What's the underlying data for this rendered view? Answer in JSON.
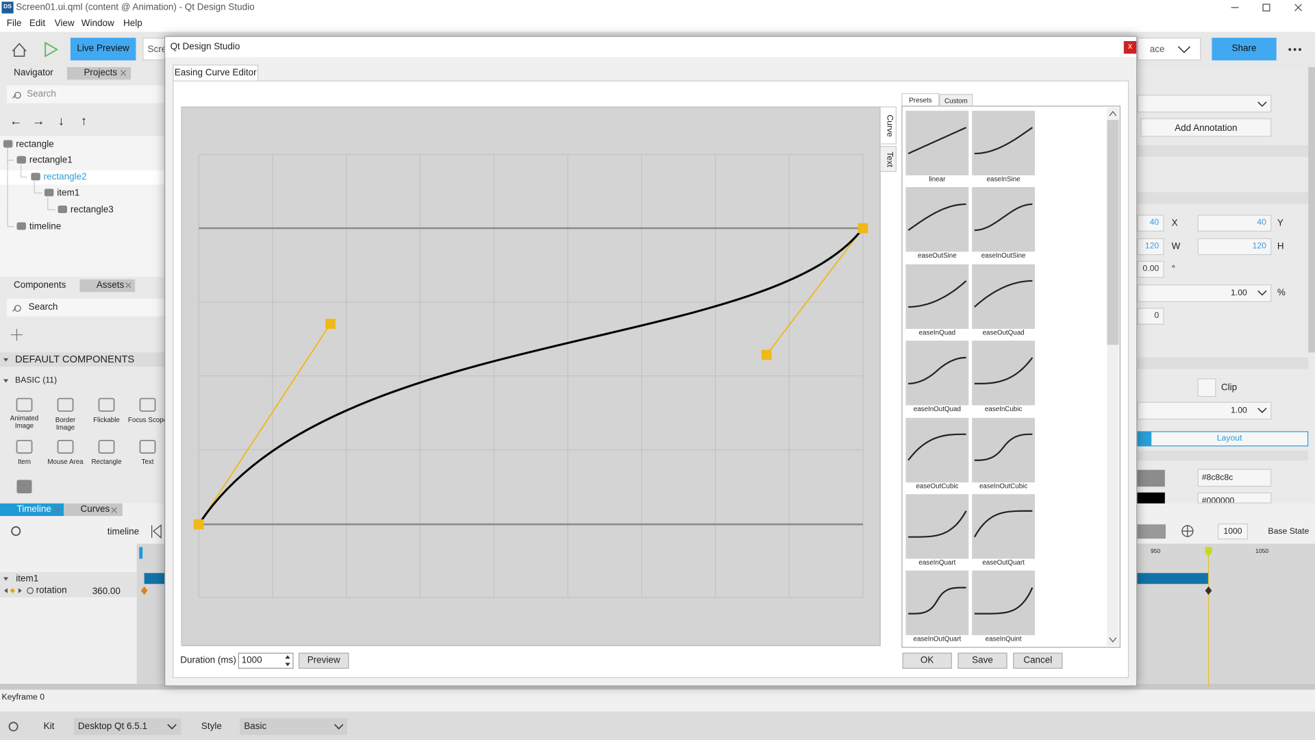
{
  "window": {
    "icon": "DS",
    "title": "Screen01.ui.qml (content @ Animation) - Qt Design Studio"
  },
  "menu": [
    "File",
    "Edit",
    "View",
    "Window",
    "Help"
  ],
  "toolbar": {
    "live_preview": "Live Preview",
    "screen": "Scree",
    "workspace": "ace",
    "share": "Share"
  },
  "navigator": {
    "tabs": [
      "Navigator",
      "Projects"
    ],
    "search": "Search",
    "arrows": [
      "←",
      "→",
      "↓",
      "↑"
    ],
    "tree": [
      "rectangle",
      "rectangle1",
      "rectangle2",
      "item1",
      "rectangle3",
      "timeline"
    ]
  },
  "components": {
    "tabs": [
      "Components",
      "Assets"
    ],
    "search": "Search",
    "section": "DEFAULT COMPONENTS",
    "group": "BASIC (11)",
    "items": [
      "Animated Image",
      "Border Image",
      "Flickable",
      "Focus Scope",
      "Item",
      "Mouse Area",
      "Rectangle",
      "Text"
    ]
  },
  "timeline": {
    "tabs": [
      "Timeline",
      "Curves"
    ],
    "name": "timeline",
    "item": "item1",
    "property": "rotation",
    "value": "360.00",
    "ruler": [
      "950",
      "1050"
    ],
    "end_frame": "1000",
    "state": "Base State",
    "keyframe": "Keyframe 0"
  },
  "properties": {
    "add_annotation": "Add Annotation",
    "x": "40",
    "x_label": "X",
    "y": "40",
    "y_label": "Y",
    "w": "120",
    "w_label": "W",
    "h": "120",
    "h_label": "H",
    "rotation": "0.00",
    "rotation_unit": "°",
    "opacity": "1.00",
    "opacity_unit": "%",
    "z": "0",
    "clip": "Clip",
    "scale": "1.00",
    "layout": "Layout",
    "color": "#8c8c8c",
    "border_color": "#000000"
  },
  "status": {
    "kit_label": "Kit",
    "kit": "Desktop Qt 6.5.1",
    "style_label": "Style",
    "style": "Basic"
  },
  "dialog": {
    "title": "Qt Design Studio",
    "close": "x",
    "tab": "Easing Curve Editor",
    "side_tabs": [
      "Curve",
      "Text"
    ],
    "preset_tabs": [
      "Presets",
      "Custom"
    ],
    "presets": [
      "linear",
      "easeInSine",
      "easeOutSine",
      "easeInOutSine",
      "easeInQuad",
      "easeOutQuad",
      "easeInOutQuad",
      "easeInCubic",
      "easeOutCubic",
      "easeInOutCubic",
      "easeInQuart",
      "easeOutQuart",
      "easeInOutQuart",
      "easeInQuint"
    ],
    "duration_label": "Duration (ms)",
    "duration": "1000",
    "preview": "Preview",
    "buttons": [
      "OK",
      "Save",
      "Cancel"
    ]
  }
}
